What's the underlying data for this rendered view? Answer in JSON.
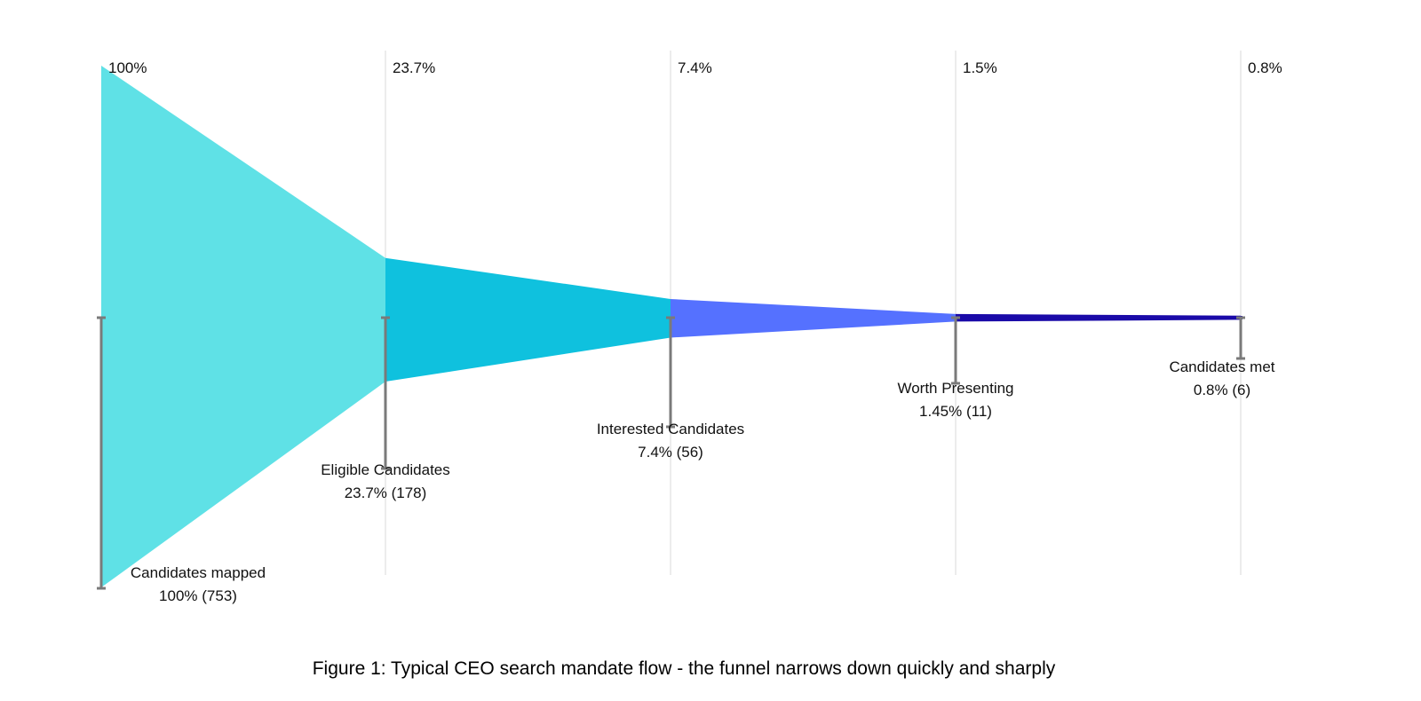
{
  "chart_data": {
    "type": "funnel",
    "stages": [
      {
        "name": "Candidates mapped",
        "percent": 100,
        "percent_label": "100%",
        "count": 753,
        "value_label": "100% (753)",
        "axis_label": "100%",
        "color": "#5fe1e6"
      },
      {
        "name": "Eligible Candidates",
        "percent": 23.7,
        "percent_label": "23.7%",
        "count": 178,
        "value_label": "23.7% (178)",
        "axis_label": "23.7%",
        "color": "#0fc1de"
      },
      {
        "name": "Interested Candidates",
        "percent": 7.4,
        "percent_label": "7.4%",
        "count": 56,
        "value_label": "7.4% (56)",
        "axis_label": "7.4%",
        "color": "#5571ff"
      },
      {
        "name": "Worth Presenting",
        "percent": 1.45,
        "percent_label": "1.45%",
        "count": 11,
        "value_label": "1.45% (11)",
        "axis_label": "1.5%",
        "color": "#1a0aa8"
      },
      {
        "name": "Candidates met",
        "percent": 0.8,
        "percent_label": "0.8%",
        "count": 6,
        "value_label": "0.8% (6)",
        "axis_label": "0.8%",
        "color": "#1a0aa8"
      }
    ],
    "grid": true,
    "caption": "Figure 1: Typical CEO search mandate flow - the funnel narrows down quickly and sharply"
  }
}
